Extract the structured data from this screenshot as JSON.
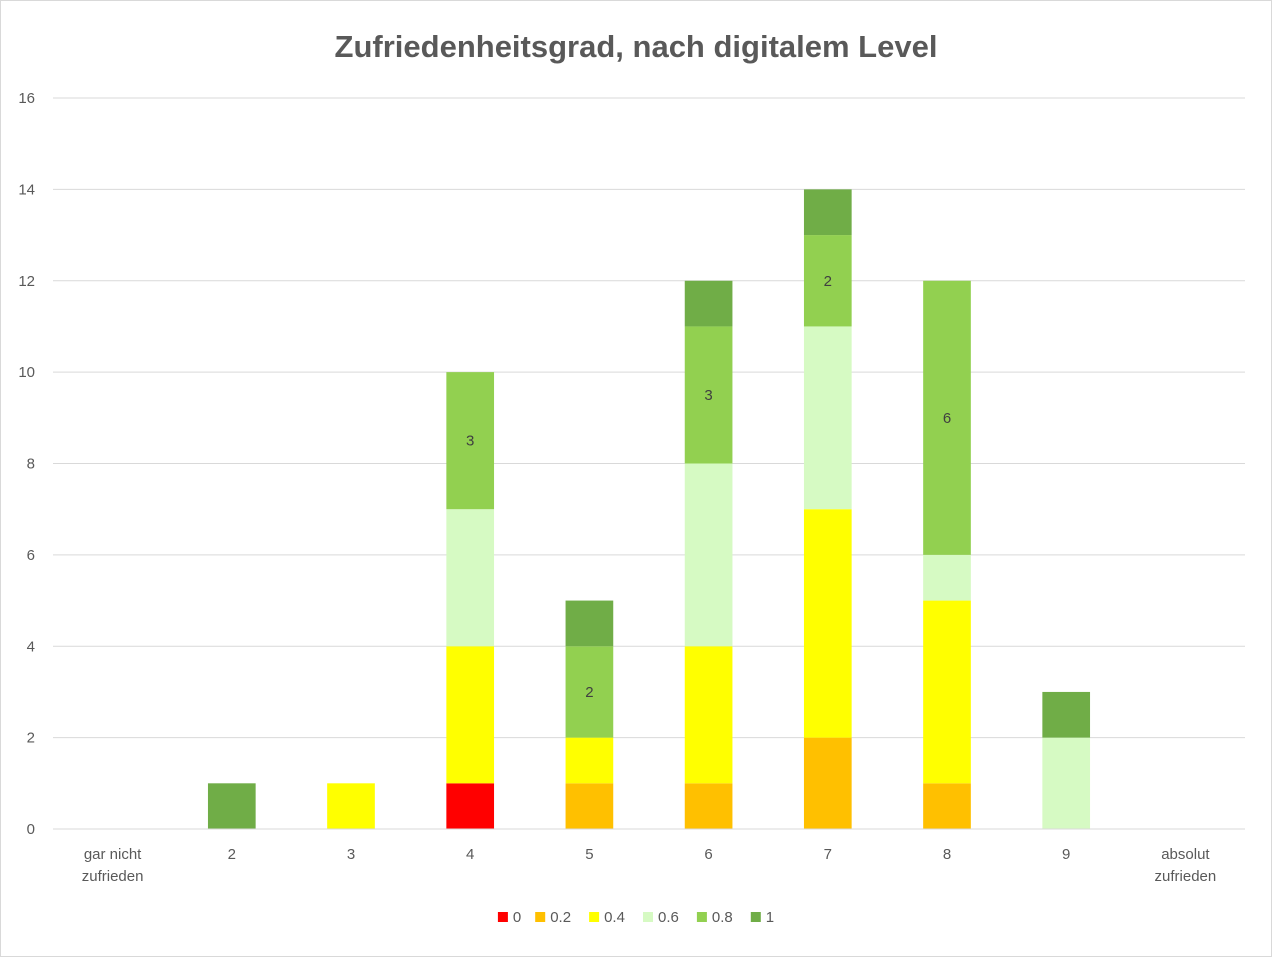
{
  "chart_data": {
    "type": "bar",
    "stacked": true,
    "title": "Zufriedenheitsgrad, nach digitalem Level",
    "xlabel": "",
    "ylabel": "",
    "ylim": [
      0,
      16
    ],
    "ytick_step": 2,
    "grid": true,
    "legend_position": "bottom",
    "categories": [
      "gar nicht zufrieden",
      "2",
      "3",
      "4",
      "5",
      "6",
      "7",
      "8",
      "9",
      "absolut zufrieden"
    ],
    "series": [
      {
        "name": "0",
        "color": "#ff0000",
        "values": [
          0,
          0,
          0,
          1,
          0,
          0,
          0,
          0,
          0,
          0
        ]
      },
      {
        "name": "0.2",
        "color": "#ffc000",
        "values": [
          0,
          0,
          0,
          0,
          1,
          1,
          2,
          1,
          0,
          0
        ]
      },
      {
        "name": "0.4",
        "color": "#ffff00",
        "values": [
          0,
          0,
          1,
          3,
          1,
          3,
          5,
          4,
          0,
          0
        ]
      },
      {
        "name": "0.6",
        "color": "#d6fac3",
        "values": [
          0,
          0,
          0,
          3,
          0,
          4,
          4,
          1,
          2,
          0
        ]
      },
      {
        "name": "0.8",
        "color": "#92d050",
        "values": [
          0,
          0,
          0,
          3,
          2,
          3,
          2,
          6,
          0,
          0
        ]
      },
      {
        "name": "1",
        "color": "#70ad47",
        "values": [
          0,
          1,
          0,
          0,
          1,
          1,
          1,
          0,
          1,
          0
        ]
      }
    ],
    "data_labels": [
      {
        "category": "4",
        "series": "0.8",
        "text": "3"
      },
      {
        "category": "5",
        "series": "0.8",
        "text": "2"
      },
      {
        "category": "6",
        "series": "0.8",
        "text": "3"
      },
      {
        "category": "7",
        "series": "0.8",
        "text": "2"
      },
      {
        "category": "8",
        "series": "0.8",
        "text": "6"
      }
    ]
  }
}
